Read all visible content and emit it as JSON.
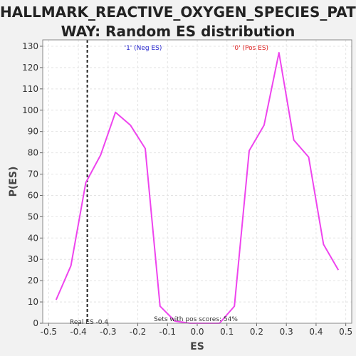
{
  "chart_data": {
    "type": "line",
    "title_lines": [
      "HALLMARK_REACTIVE_OXYGEN_SPECIES_PATH",
      "WAY: Random ES distribution"
    ],
    "xlabel": "ES",
    "ylabel": "P(ES)",
    "xlim": [
      -0.52,
      0.52
    ],
    "ylim": [
      0,
      133
    ],
    "x_ticks": [
      -0.5,
      -0.4,
      -0.3,
      -0.2,
      -0.1,
      0.0,
      0.1,
      0.2,
      0.3,
      0.4,
      0.5
    ],
    "x_tick_labels": [
      "-0.5",
      "-0.4",
      "-0.3",
      "-0.2",
      "-0.1",
      "0.0",
      "0.1",
      "0.2",
      "0.3",
      "0.4",
      "0.5"
    ],
    "y_ticks": [
      0,
      10,
      20,
      30,
      40,
      50,
      60,
      70,
      80,
      90,
      100,
      110,
      120,
      130
    ],
    "y_tick_labels": [
      "0",
      "10",
      "20",
      "30",
      "40",
      "50",
      "60",
      "70",
      "80",
      "90",
      "100",
      "110",
      "120",
      "130"
    ],
    "grid": true,
    "series": [
      {
        "color": "#ee44ee",
        "x": [
          -0.475,
          -0.425,
          -0.375,
          -0.325,
          -0.275,
          -0.225,
          -0.175,
          -0.125,
          -0.075,
          -0.025,
          0.025,
          0.075,
          0.125,
          0.175,
          0.225,
          0.275,
          0.325,
          0.375,
          0.425,
          0.475
        ],
        "y": [
          11,
          27,
          66,
          79,
          99,
          93,
          82,
          8,
          1,
          0,
          0,
          0,
          8,
          81,
          93,
          127,
          86,
          78,
          37,
          25
        ]
      }
    ],
    "real_es": -0.37,
    "real_es_color": "#222222",
    "annotations": {
      "neg_label": "'1' (Neg ES)",
      "neg_color": "#2222cc",
      "pos_label": "'0' (Pos ES)",
      "pos_color": "#dd2222",
      "real_es_text": "Real ES -0.4",
      "pos_scores_text": "Sets with pos scores: 54%"
    }
  }
}
